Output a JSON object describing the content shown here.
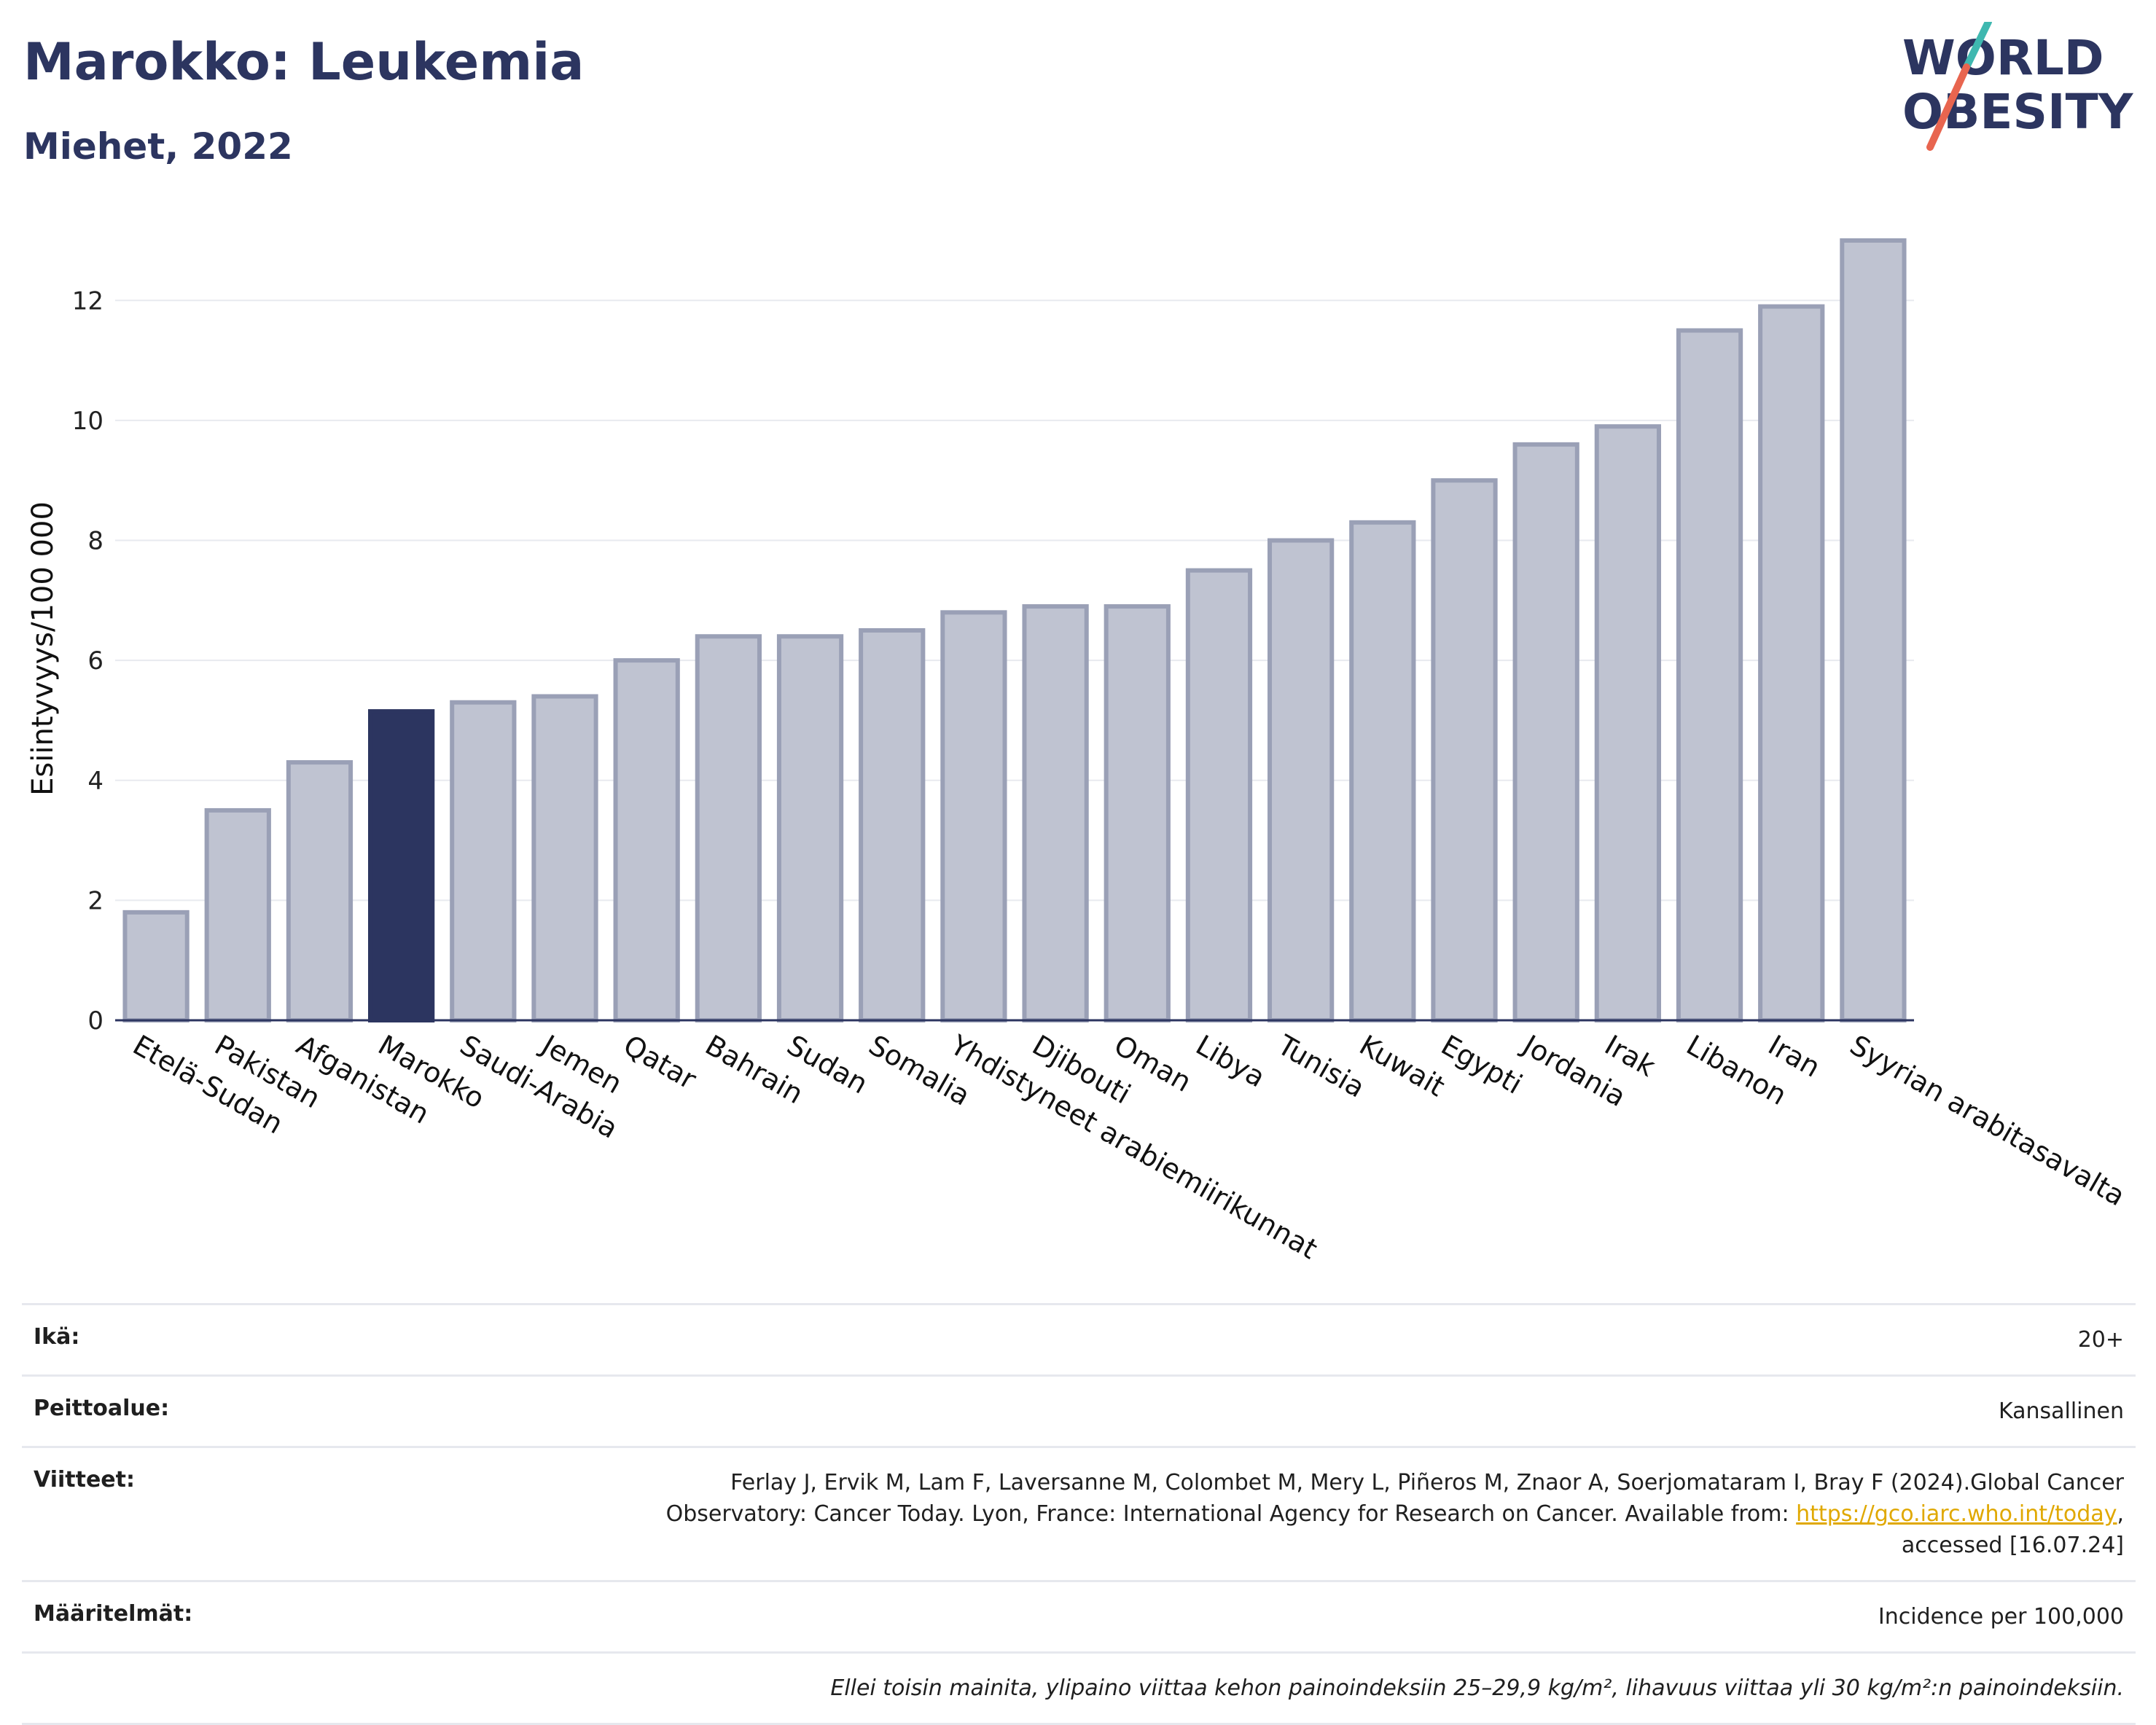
{
  "header": {
    "title": "Marokko: Leukemia",
    "subtitle": "Miehet, 2022",
    "logo_line1": "WORLD",
    "logo_line2": "OBESITY"
  },
  "colors": {
    "bar": "#bfc3d1",
    "bar_border": "#9aa0b6",
    "highlight": "#2c3560",
    "logo_navy": "#2c3560",
    "logo_teal": "#3fb8b0",
    "logo_red": "#e8654f"
  },
  "chart_data": {
    "type": "bar",
    "ylabel": "Esiintyvyys/100 000",
    "ylim": [
      0,
      13
    ],
    "yticks": [
      0,
      2,
      4,
      6,
      8,
      10,
      12
    ],
    "grid": true,
    "highlight": "Marokko",
    "categories": [
      "Etelä-Sudan",
      "Pakistan",
      "Afganistan",
      "Marokko",
      "Saudi-Arabia",
      "Jemen",
      "Qatar",
      "Bahrain",
      "Sudan",
      "Somalia",
      "Yhdistyneet arabiemiirikunnat",
      "Djibouti",
      "Oman",
      "Libya",
      "Tunisia",
      "Kuwait",
      "Egypti",
      "Jordania",
      "Irak",
      "Libanon",
      "Iran",
      "Syyrian arabitasavalta"
    ],
    "values": [
      1.8,
      3.5,
      4.3,
      5.15,
      5.3,
      5.4,
      6.0,
      6.4,
      6.4,
      6.5,
      6.8,
      6.9,
      6.9,
      7.5,
      8.0,
      8.3,
      9.0,
      9.6,
      9.9,
      11.5,
      11.9,
      13.0
    ]
  },
  "info": {
    "age_label": "Ikä:",
    "age_value": "20+",
    "coverage_label": "Peittoalue:",
    "coverage_value": "Kansallinen",
    "refs_label": "Viitteet:",
    "refs_line1": "Ferlay J, Ervik M, Lam F, Laversanne M, Colombet M, Mery L, Piñeros M, Znaor A, Soerjomataram I, Bray F (2024).Global Cancer",
    "refs_line2": "Observatory: Cancer Today. Lyon, France: International Agency for Research on Cancer. Available from:",
    "refs_link": "https://gco.iarc.who.int/today",
    "refs_line3": "accessed [16.07.24]",
    "defs_label": "Määritelmät:",
    "defs_value": "Incidence per 100,000",
    "note": "Ellei toisin mainita, ylipaino viittaa kehon painoindeksiin 25–29,9 kg/m², lihavuus viittaa yli 30 kg/m²:n painoindeksiin."
  }
}
